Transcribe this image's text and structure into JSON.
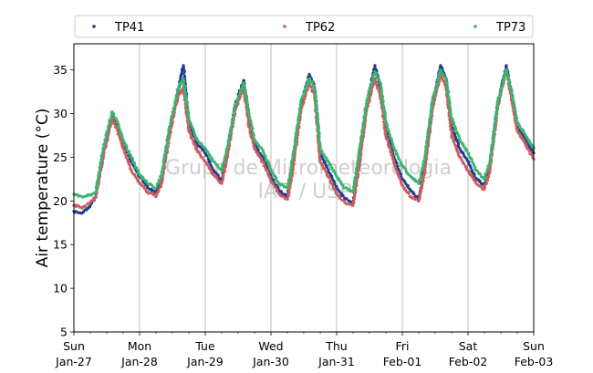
{
  "chart_data": {
    "type": "scatter",
    "title": "",
    "xlabel": "",
    "ylabel": "Air temperature (°C)",
    "ylim": [
      5,
      38
    ],
    "y_ticks": [
      5,
      10,
      15,
      20,
      25,
      30,
      35
    ],
    "xlim": [
      "2019-01-27T00:00",
      "2019-02-03T00:00"
    ],
    "x_ticks": [
      {
        "date": "2019-01-27",
        "day": "Sun",
        "label": "Jan-27"
      },
      {
        "date": "2019-01-28",
        "day": "Mon",
        "label": "Jan-28"
      },
      {
        "date": "2019-01-29",
        "day": "Tue",
        "label": "Jan-29"
      },
      {
        "date": "2019-01-30",
        "day": "Wed",
        "label": "Jan-30"
      },
      {
        "date": "2019-01-31",
        "day": "Thu",
        "label": "Jan-31"
      },
      {
        "date": "2019-02-01",
        "day": "Fri",
        "label": "Feb-01"
      },
      {
        "date": "2019-02-02",
        "day": "Sat",
        "label": "Feb-02"
      },
      {
        "date": "2019-02-03",
        "day": "Sun",
        "label": "Feb-03"
      }
    ],
    "grid": "vertical at day ticks",
    "legend": "above plot, three columns",
    "watermark": [
      "Grupo de Micrometeorologia",
      "IAG / USP"
    ],
    "series": [
      {
        "name": "TP41",
        "color": "#1f3d8c",
        "x": [
          "2019-01-27T00:00",
          "2019-01-27T03:00",
          "2019-01-27T06:00",
          "2019-01-27T08:00",
          "2019-01-27T11:00",
          "2019-01-27T14:00",
          "2019-01-27T16:00",
          "2019-01-27T18:00",
          "2019-01-27T21:00",
          "2019-01-28T00:00",
          "2019-01-28T03:00",
          "2019-01-28T06:00",
          "2019-01-28T08:00",
          "2019-01-28T11:00",
          "2019-01-28T14:00",
          "2019-01-28T16:00",
          "2019-01-28T18:00",
          "2019-01-28T21:00",
          "2019-01-29T00:00",
          "2019-01-29T03:00",
          "2019-01-29T06:00",
          "2019-01-29T08:00",
          "2019-01-29T11:00",
          "2019-01-29T14:00",
          "2019-01-29T16:00",
          "2019-01-29T18:00",
          "2019-01-29T21:00",
          "2019-01-30T00:00",
          "2019-01-30T03:00",
          "2019-01-30T06:00",
          "2019-01-30T08:00",
          "2019-01-30T11:00",
          "2019-01-30T14:00",
          "2019-01-30T16:00",
          "2019-01-30T18:00",
          "2019-01-30T21:00",
          "2019-01-31T00:00",
          "2019-01-31T03:00",
          "2019-01-31T06:00",
          "2019-01-31T08:00",
          "2019-01-31T11:00",
          "2019-01-31T14:00",
          "2019-01-31T16:00",
          "2019-01-31T18:00",
          "2019-01-31T21:00",
          "2019-02-01T00:00",
          "2019-02-01T03:00",
          "2019-02-01T06:00",
          "2019-02-01T08:00",
          "2019-02-01T11:00",
          "2019-02-01T14:00",
          "2019-02-01T16:00",
          "2019-02-01T18:00",
          "2019-02-01T21:00",
          "2019-02-02T00:00",
          "2019-02-02T03:00",
          "2019-02-02T06:00",
          "2019-02-02T08:00",
          "2019-02-02T11:00",
          "2019-02-02T14:00",
          "2019-02-02T16:00",
          "2019-02-02T18:00",
          "2019-02-02T21:00",
          "2019-02-03T00:00"
        ],
        "y": [
          18.8,
          18.6,
          19.5,
          20.5,
          26.0,
          29.8,
          28.5,
          26.8,
          24.5,
          22.8,
          21.5,
          20.9,
          22.5,
          28.0,
          32.5,
          35.5,
          29.0,
          26.5,
          25.5,
          23.5,
          22.4,
          25.5,
          31.0,
          33.8,
          29.5,
          26.5,
          25.0,
          22.8,
          21.2,
          20.5,
          24.5,
          31.0,
          34.5,
          33.0,
          25.5,
          23.5,
          21.5,
          20.3,
          19.8,
          24.0,
          31.0,
          35.5,
          33.0,
          28.5,
          25.0,
          22.5,
          21.2,
          20.2,
          23.5,
          31.0,
          35.5,
          34.0,
          28.5,
          26.0,
          24.5,
          22.5,
          21.8,
          24.0,
          31.5,
          35.5,
          32.0,
          28.5,
          27.0,
          25.5
        ]
      },
      {
        "name": "TP62",
        "color": "#cd5c5c",
        "x": [
          "2019-01-27T00:00",
          "2019-01-27T03:00",
          "2019-01-27T06:00",
          "2019-01-27T08:00",
          "2019-01-27T11:00",
          "2019-01-27T14:00",
          "2019-01-27T16:00",
          "2019-01-27T18:00",
          "2019-01-27T21:00",
          "2019-01-28T00:00",
          "2019-01-28T03:00",
          "2019-01-28T06:00",
          "2019-01-28T08:00",
          "2019-01-28T11:00",
          "2019-01-28T14:00",
          "2019-01-28T16:00",
          "2019-01-28T18:00",
          "2019-01-28T21:00",
          "2019-01-29T00:00",
          "2019-01-29T03:00",
          "2019-01-29T06:00",
          "2019-01-29T08:00",
          "2019-01-29T11:00",
          "2019-01-29T14:00",
          "2019-01-29T16:00",
          "2019-01-29T18:00",
          "2019-01-29T21:00",
          "2019-01-30T00:00",
          "2019-01-30T03:00",
          "2019-01-30T06:00",
          "2019-01-30T08:00",
          "2019-01-30T11:00",
          "2019-01-30T14:00",
          "2019-01-30T16:00",
          "2019-01-30T18:00",
          "2019-01-30T21:00",
          "2019-01-31T00:00",
          "2019-01-31T03:00",
          "2019-01-31T06:00",
          "2019-01-31T08:00",
          "2019-01-31T11:00",
          "2019-01-31T14:00",
          "2019-01-31T16:00",
          "2019-01-31T18:00",
          "2019-01-31T21:00",
          "2019-02-01T00:00",
          "2019-02-01T03:00",
          "2019-02-01T06:00",
          "2019-02-01T08:00",
          "2019-02-01T11:00",
          "2019-02-01T14:00",
          "2019-02-01T16:00",
          "2019-02-01T18:00",
          "2019-02-01T21:00",
          "2019-02-02T00:00",
          "2019-02-02T03:00",
          "2019-02-02T06:00",
          "2019-02-02T08:00",
          "2019-02-02T11:00",
          "2019-02-02T14:00",
          "2019-02-02T16:00",
          "2019-02-02T18:00",
          "2019-02-02T21:00",
          "2019-02-03T00:00"
        ],
        "y": [
          19.5,
          19.2,
          19.8,
          20.4,
          25.5,
          29.5,
          28.0,
          26.0,
          23.5,
          22.0,
          21.0,
          20.5,
          22.0,
          27.5,
          32.0,
          33.0,
          28.0,
          25.8,
          24.5,
          23.0,
          22.0,
          25.0,
          30.5,
          33.0,
          28.5,
          26.0,
          24.5,
          22.3,
          20.8,
          20.2,
          23.5,
          30.5,
          33.5,
          32.0,
          24.5,
          22.8,
          20.8,
          19.8,
          19.5,
          23.5,
          30.5,
          34.0,
          32.0,
          27.5,
          24.3,
          21.8,
          20.5,
          20.0,
          23.0,
          30.5,
          34.5,
          33.0,
          27.5,
          25.0,
          23.5,
          22.0,
          21.3,
          23.5,
          31.0,
          35.0,
          31.5,
          28.0,
          26.5,
          24.8
        ]
      },
      {
        "name": "TP73",
        "color": "#3cb371",
        "x": [
          "2019-01-27T00:00",
          "2019-01-27T03:00",
          "2019-01-27T06:00",
          "2019-01-27T08:00",
          "2019-01-27T11:00",
          "2019-01-27T14:00",
          "2019-01-27T16:00",
          "2019-01-27T18:00",
          "2019-01-27T21:00",
          "2019-01-28T00:00",
          "2019-01-28T03:00",
          "2019-01-28T06:00",
          "2019-01-28T08:00",
          "2019-01-28T11:00",
          "2019-01-28T14:00",
          "2019-01-28T16:00",
          "2019-01-28T18:00",
          "2019-01-28T21:00",
          "2019-01-29T00:00",
          "2019-01-29T03:00",
          "2019-01-29T06:00",
          "2019-01-29T08:00",
          "2019-01-29T11:00",
          "2019-01-29T14:00",
          "2019-01-29T16:00",
          "2019-01-29T18:00",
          "2019-01-29T21:00",
          "2019-01-30T00:00",
          "2019-01-30T03:00",
          "2019-01-30T06:00",
          "2019-01-30T08:00",
          "2019-01-30T11:00",
          "2019-01-30T14:00",
          "2019-01-30T16:00",
          "2019-01-30T18:00",
          "2019-01-30T21:00",
          "2019-01-31T00:00",
          "2019-01-31T03:00",
          "2019-01-31T06:00",
          "2019-01-31T08:00",
          "2019-01-31T11:00",
          "2019-01-31T14:00",
          "2019-01-31T16:00",
          "2019-01-31T18:00",
          "2019-01-31T21:00",
          "2019-02-01T00:00",
          "2019-02-01T03:00",
          "2019-02-01T06:00",
          "2019-02-01T08:00",
          "2019-02-01T11:00",
          "2019-02-01T14:00",
          "2019-02-01T16:00",
          "2019-02-01T18:00",
          "2019-02-01T21:00",
          "2019-02-02T00:00",
          "2019-02-02T03:00",
          "2019-02-02T06:00",
          "2019-02-02T08:00",
          "2019-02-02T11:00",
          "2019-02-02T14:00",
          "2019-02-02T16:00",
          "2019-02-02T18:00",
          "2019-02-02T21:00",
          "2019-02-03T00:00"
        ],
        "y": [
          20.8,
          20.5,
          20.7,
          21.0,
          26.5,
          30.2,
          29.0,
          27.0,
          25.0,
          23.0,
          22.0,
          21.5,
          23.0,
          28.5,
          32.8,
          34.0,
          29.5,
          27.0,
          26.0,
          24.5,
          23.5,
          26.0,
          31.0,
          33.5,
          30.0,
          27.0,
          25.8,
          23.5,
          22.0,
          21.5,
          25.0,
          31.5,
          34.0,
          33.0,
          26.0,
          24.5,
          22.8,
          21.5,
          21.0,
          25.0,
          31.5,
          34.8,
          33.5,
          29.0,
          26.0,
          24.0,
          22.8,
          22.0,
          24.5,
          31.5,
          35.0,
          34.0,
          29.5,
          27.0,
          25.5,
          23.5,
          22.5,
          24.5,
          31.5,
          35.0,
          32.5,
          29.0,
          27.5,
          26.0
        ]
      }
    ]
  }
}
